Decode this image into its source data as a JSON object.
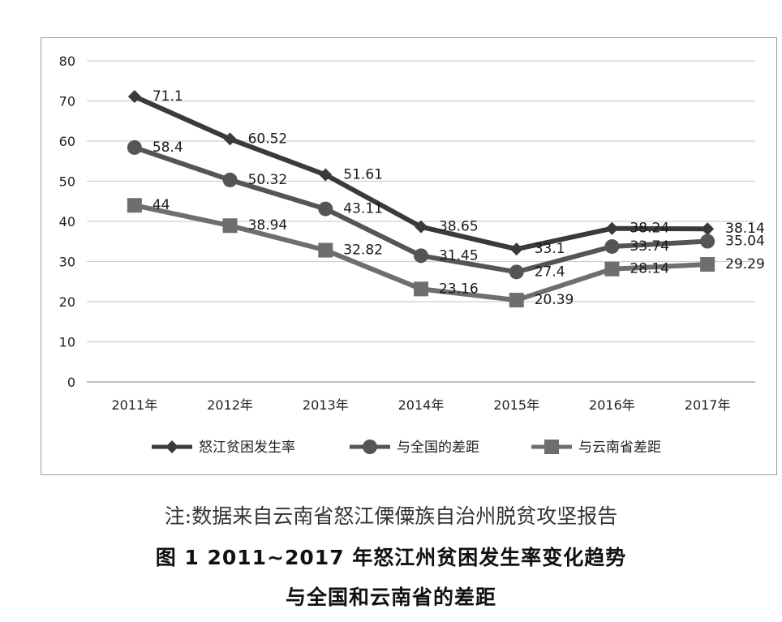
{
  "chart_data": {
    "type": "line",
    "categories": [
      "2011年",
      "2012年",
      "2013年",
      "2014年",
      "2015年",
      "2016年",
      "2017年"
    ],
    "series": [
      {
        "name": "怒江贫困发生率",
        "marker": "diamond",
        "color": "#3a3a3a",
        "values": [
          71.1,
          60.52,
          51.61,
          38.65,
          33.1,
          38.24,
          38.14
        ],
        "labels": [
          "71.1",
          "60.52",
          "51.61",
          "38.65",
          "33.1",
          "38.24",
          "38.14"
        ]
      },
      {
        "name": "与全国的差距",
        "marker": "circle",
        "color": "#555555",
        "values": [
          58.4,
          50.32,
          43.11,
          31.45,
          27.4,
          33.74,
          35.04
        ],
        "labels": [
          "58.4",
          "50.32",
          "43.11",
          "31.45",
          "27.4",
          "33.74",
          "35.04"
        ]
      },
      {
        "name": "与云南省差距",
        "marker": "square",
        "color": "#6e6e6e",
        "values": [
          44,
          38.94,
          32.82,
          23.16,
          20.39,
          28.14,
          29.29
        ],
        "labels": [
          "44",
          "38.94",
          "32.82",
          "23.16",
          "20.39",
          "28.14",
          "29.29"
        ]
      }
    ],
    "ylim": [
      0,
      80
    ],
    "yticks": [
      0,
      10,
      20,
      30,
      40,
      50,
      60,
      70,
      80
    ],
    "grid": true,
    "legend_position": "bottom"
  },
  "captions": {
    "note": "注:数据来自云南省怒江傈僳族自治州脱贫攻坚报告",
    "title": "图 1   2011~2017 年怒江州贫困发生率变化趋势",
    "subtitle": "与全国和云南省的差距"
  }
}
